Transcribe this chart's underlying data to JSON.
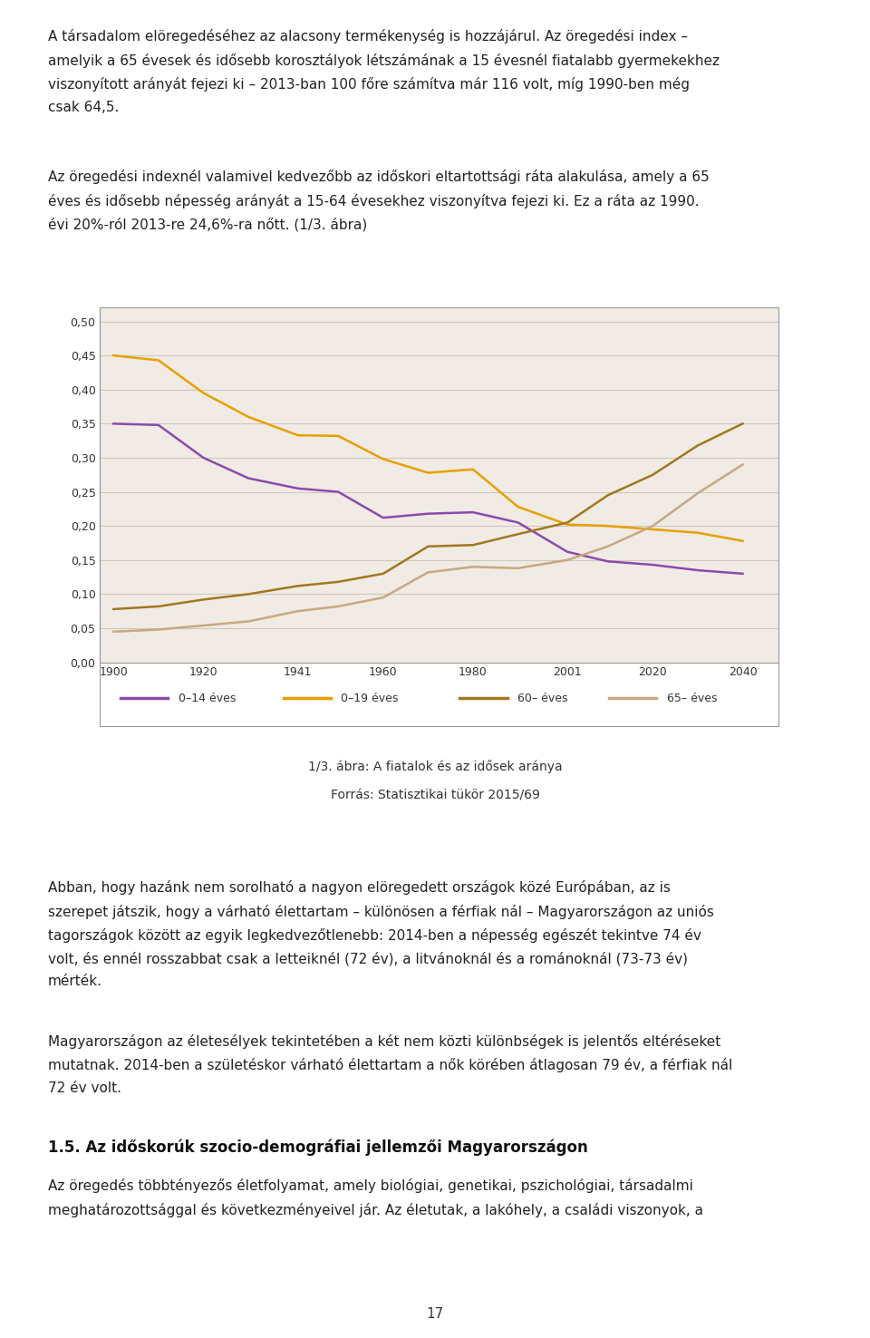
{
  "years": [
    1900,
    1910,
    1920,
    1930,
    1941,
    1950,
    1960,
    1970,
    1980,
    1990,
    2001,
    2010,
    2020,
    2030,
    2040
  ],
  "line_014": [
    0.35,
    0.348,
    0.3,
    0.27,
    0.255,
    0.25,
    0.212,
    0.218,
    0.22,
    0.205,
    0.162,
    0.148,
    0.143,
    0.135,
    0.13
  ],
  "line_019": [
    0.45,
    0.443,
    0.395,
    0.36,
    0.333,
    0.332,
    0.298,
    0.278,
    0.283,
    0.228,
    0.202,
    0.2,
    0.195,
    0.19,
    0.178
  ],
  "line_60": [
    0.078,
    0.082,
    0.092,
    0.1,
    0.112,
    0.118,
    0.13,
    0.17,
    0.172,
    0.188,
    0.205,
    0.245,
    0.275,
    0.318,
    0.35
  ],
  "line_65": [
    0.045,
    0.048,
    0.054,
    0.06,
    0.075,
    0.082,
    0.095,
    0.132,
    0.14,
    0.138,
    0.15,
    0.17,
    0.2,
    0.248,
    0.29
  ],
  "color_014": "#8B4BAB",
  "color_019": "#E8A000",
  "color_60": "#A07820",
  "color_65": "#C8A882",
  "xticks": [
    1900,
    1920,
    1941,
    1960,
    1980,
    2001,
    2020,
    2040
  ],
  "yticks": [
    0.0,
    0.05,
    0.1,
    0.15,
    0.2,
    0.25,
    0.3,
    0.35,
    0.4,
    0.45,
    0.5
  ],
  "ylim": [
    0.0,
    0.52
  ],
  "xlim": [
    1897,
    2048
  ],
  "legend_labels": [
    "0–14 éves",
    "0–19 éves",
    "60– éves",
    "65– éves"
  ],
  "caption_line1": "1/3. ábra: A fiatalok és az idősek aránya",
  "caption_line2": "Forrás: Statisztikai tükör 2015/69",
  "chart_bg": "#f0ebe4",
  "grid_color": "#d0c8be",
  "line_width": 1.8,
  "top_text_para1": "A társadalom elöregedéséhez az alacsony termékenység is hozzájárul. Az öregedési index –\nAmely a 65 évesek és idősebb korosztályok létszámának a 15 évesnél fiatalabb gyermekekhez\nviszonyított arányát fejezi ki – 2013-ban 100 főre számítva már 116 volt, míg 1990-ben még\ncsak 64,5.",
  "top_text_para2": "Az öregedési indexnél valamivel kedvezőbb az időskori eltartottsági ráta alakulása, amely a 65\néves és idősebb népesség arányát a 15-64 évesekhez viszonyítva fejezi ki. Ez a ráta az 1990.\névi 20%-ról 2013-re 24,6%-ra nőtt. (1/3. ábra)",
  "bottom_text_para1": "Abban, hogy hazánk nem sorolható a nagyon elöregedett országok közé Európában, az is\nszerepet játszik, hogy a várható élettartam – különösen a férfiak nál – Magyarországon az uniós\ntagországok között az egyik legkedvezőtlenebb: 2014-ben a népesség egészét tekintve 74 év\nvolt, és ennél rosszabbat csak a letteiknél (72 év), a litvánoknál és a románoknál (73-73 év)\nmérték.",
  "bottom_text_para2": "Magyarországon az életesélyek tekintetében a két nem közti különbségek is jelentős eltéréseket\nmutatnak. 2014-ben a születéskor várható élettartam a nők körében átlagosan 79 év, a férfiak nál\n72 év volt.",
  "section_heading": "1.5. Az időskorúk szocio-demográfiai jellemzői Magyarországon",
  "section_text": "Az öregedés többtényezős életfolyamat, amely biológiai, genetikai, pszichológiai, társadalmi\nmeghatározottsággal és következményeivel jár. Az életutak, a lakóhely, a családi viszonyok, a",
  "page_number": "17"
}
